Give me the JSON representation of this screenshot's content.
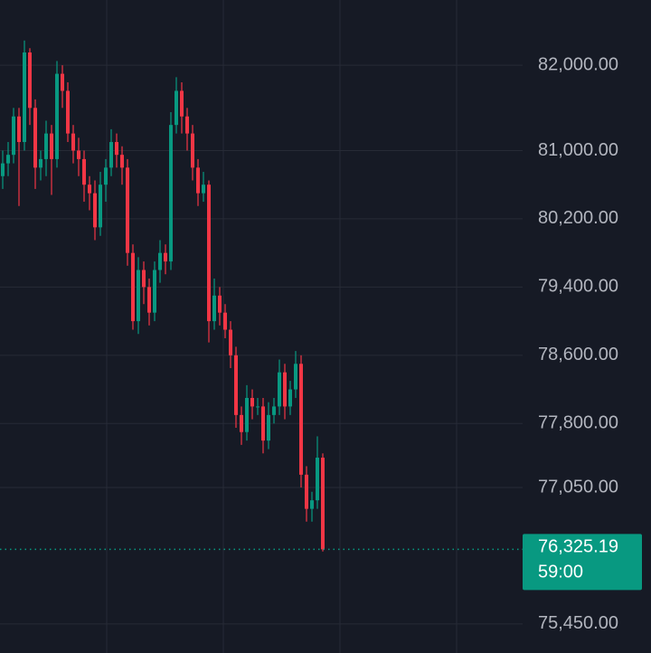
{
  "chart_data": {
    "type": "candlestick",
    "up_color": "#089981",
    "down_color": "#f23645",
    "open": [
      80700,
      80850,
      80950,
      81400,
      81100,
      82150,
      81500,
      80800,
      80900,
      81200,
      80900,
      81900,
      81700,
      81200,
      81000,
      80900,
      80600,
      80500,
      80100,
      80600,
      80800,
      81100,
      80950,
      80800,
      79800,
      79000,
      79600,
      79400,
      79100,
      79600,
      79800,
      79700,
      81300,
      81700,
      81400,
      81200,
      80800,
      80500,
      80600,
      79000,
      79300,
      79100,
      78900,
      78600,
      77900,
      77700,
      78100,
      78000,
      78000,
      77600,
      77900,
      78000,
      78400,
      78000,
      78200,
      78500,
      77200,
      76800,
      76900,
      77400
    ],
    "high": [
      81000,
      81100,
      81500,
      81500,
      82290,
      82200,
      81600,
      81000,
      81350,
      81300,
      82050,
      82000,
      81800,
      81300,
      81150,
      81000,
      80700,
      80650,
      80750,
      80900,
      81250,
      81200,
      81050,
      80900,
      79900,
      79750,
      79700,
      79500,
      79700,
      79950,
      79900,
      81450,
      81860,
      81800,
      81500,
      81300,
      80900,
      80750,
      80650,
      79500,
      79400,
      79200,
      79000,
      78700,
      78000,
      78250,
      78200,
      78100,
      78100,
      78050,
      78100,
      78550,
      78500,
      78300,
      78650,
      78600,
      77300,
      77000,
      77650,
      77450
    ],
    "low": [
      80550,
      80700,
      80850,
      80350,
      81000,
      81300,
      80550,
      80650,
      80700,
      80480,
      80800,
      81500,
      81100,
      80850,
      80700,
      80400,
      80300,
      79950,
      80000,
      80400,
      80700,
      80800,
      80600,
      79650,
      78900,
      78850,
      79200,
      78950,
      79000,
      79450,
      79550,
      79600,
      81200,
      81200,
      81000,
      80650,
      80350,
      80400,
      78750,
      78900,
      78950,
      78800,
      78450,
      77750,
      77550,
      77600,
      77850,
      77900,
      77450,
      77500,
      77800,
      77900,
      77850,
      77900,
      78100,
      77050,
      76650,
      76650,
      76800,
      76300
    ],
    "close": [
      80850,
      80950,
      81400,
      81100,
      82150,
      81500,
      80800,
      80900,
      81200,
      80900,
      81900,
      81700,
      81200,
      81000,
      80900,
      80600,
      80500,
      80100,
      80600,
      80800,
      81100,
      80950,
      80800,
      79800,
      79000,
      79600,
      79400,
      79100,
      79600,
      79800,
      79700,
      81300,
      81700,
      81400,
      81200,
      80800,
      80500,
      80600,
      79000,
      79300,
      79100,
      78900,
      78600,
      77900,
      77700,
      78100,
      78000,
      78000,
      77600,
      77900,
      78000,
      78400,
      78000,
      78200,
      78500,
      77200,
      76800,
      76900,
      77400,
      76325.19
    ],
    "ylim": [
      75110,
      82765
    ],
    "yticks": [
      {
        "value": 82000,
        "label": "82,000.00"
      },
      {
        "value": 81000,
        "label": "81,000.00"
      },
      {
        "value": 80200,
        "label": "80,200.00"
      },
      {
        "value": 79400,
        "label": "79,400.00"
      },
      {
        "value": 78600,
        "label": "78,600.00"
      },
      {
        "value": 77800,
        "label": "77,800.00"
      },
      {
        "value": 77050,
        "label": "77,050.00"
      },
      {
        "value": 75450,
        "label": "75,450.00"
      }
    ],
    "grid": true,
    "last_price": {
      "value": 76325.19,
      "label": "76,325.19",
      "countdown": "59:00",
      "color": "#089981"
    }
  }
}
